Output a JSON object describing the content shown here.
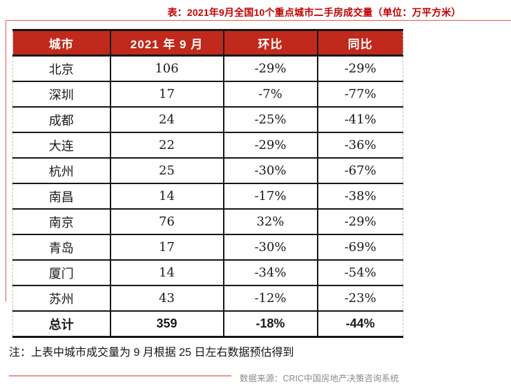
{
  "page": {
    "title": "表：2021年9月全国10个重点城市二手房成交量（单位：万平方米）",
    "note": "注：上表中城市成交量为 9 月根据 25 日左右数据预估得到",
    "source": "数据来源：CRIC中国房地产决策咨询系统"
  },
  "colors": {
    "title_red": "#c00000",
    "header_bg": "#c0291b",
    "header_text": "#ffffff",
    "frame_red": "#e2574c",
    "source_line": "#ee938a",
    "source_text": "#8b8b8b"
  },
  "chart_data": {
    "type": "table",
    "title": "2021年9月全国10个重点城市二手房成交量",
    "unit": "万平方米",
    "columns": [
      "城市",
      "2021 年 9 月",
      "环比",
      "同比"
    ],
    "rows": [
      {
        "city": "北京",
        "volume": "106",
        "mom": "-29%",
        "yoy": "-29%"
      },
      {
        "city": "深圳",
        "volume": "17",
        "mom": "-7%",
        "yoy": "-77%"
      },
      {
        "city": "成都",
        "volume": "24",
        "mom": "-25%",
        "yoy": "-41%"
      },
      {
        "city": "大连",
        "volume": "22",
        "mom": "-29%",
        "yoy": "-36%"
      },
      {
        "city": "杭州",
        "volume": "25",
        "mom": "-30%",
        "yoy": "-67%"
      },
      {
        "city": "南昌",
        "volume": "14",
        "mom": "-17%",
        "yoy": "-38%"
      },
      {
        "city": "南京",
        "volume": "76",
        "mom": "32%",
        "yoy": "-29%"
      },
      {
        "city": "青岛",
        "volume": "17",
        "mom": "-30%",
        "yoy": "-69%"
      },
      {
        "city": "厦门",
        "volume": "14",
        "mom": "-34%",
        "yoy": "-54%"
      },
      {
        "city": "苏州",
        "volume": "43",
        "mom": "-12%",
        "yoy": "-23%"
      }
    ],
    "total": {
      "city": "总计",
      "volume": "359",
      "mom": "-18%",
      "yoy": "-44%"
    }
  }
}
